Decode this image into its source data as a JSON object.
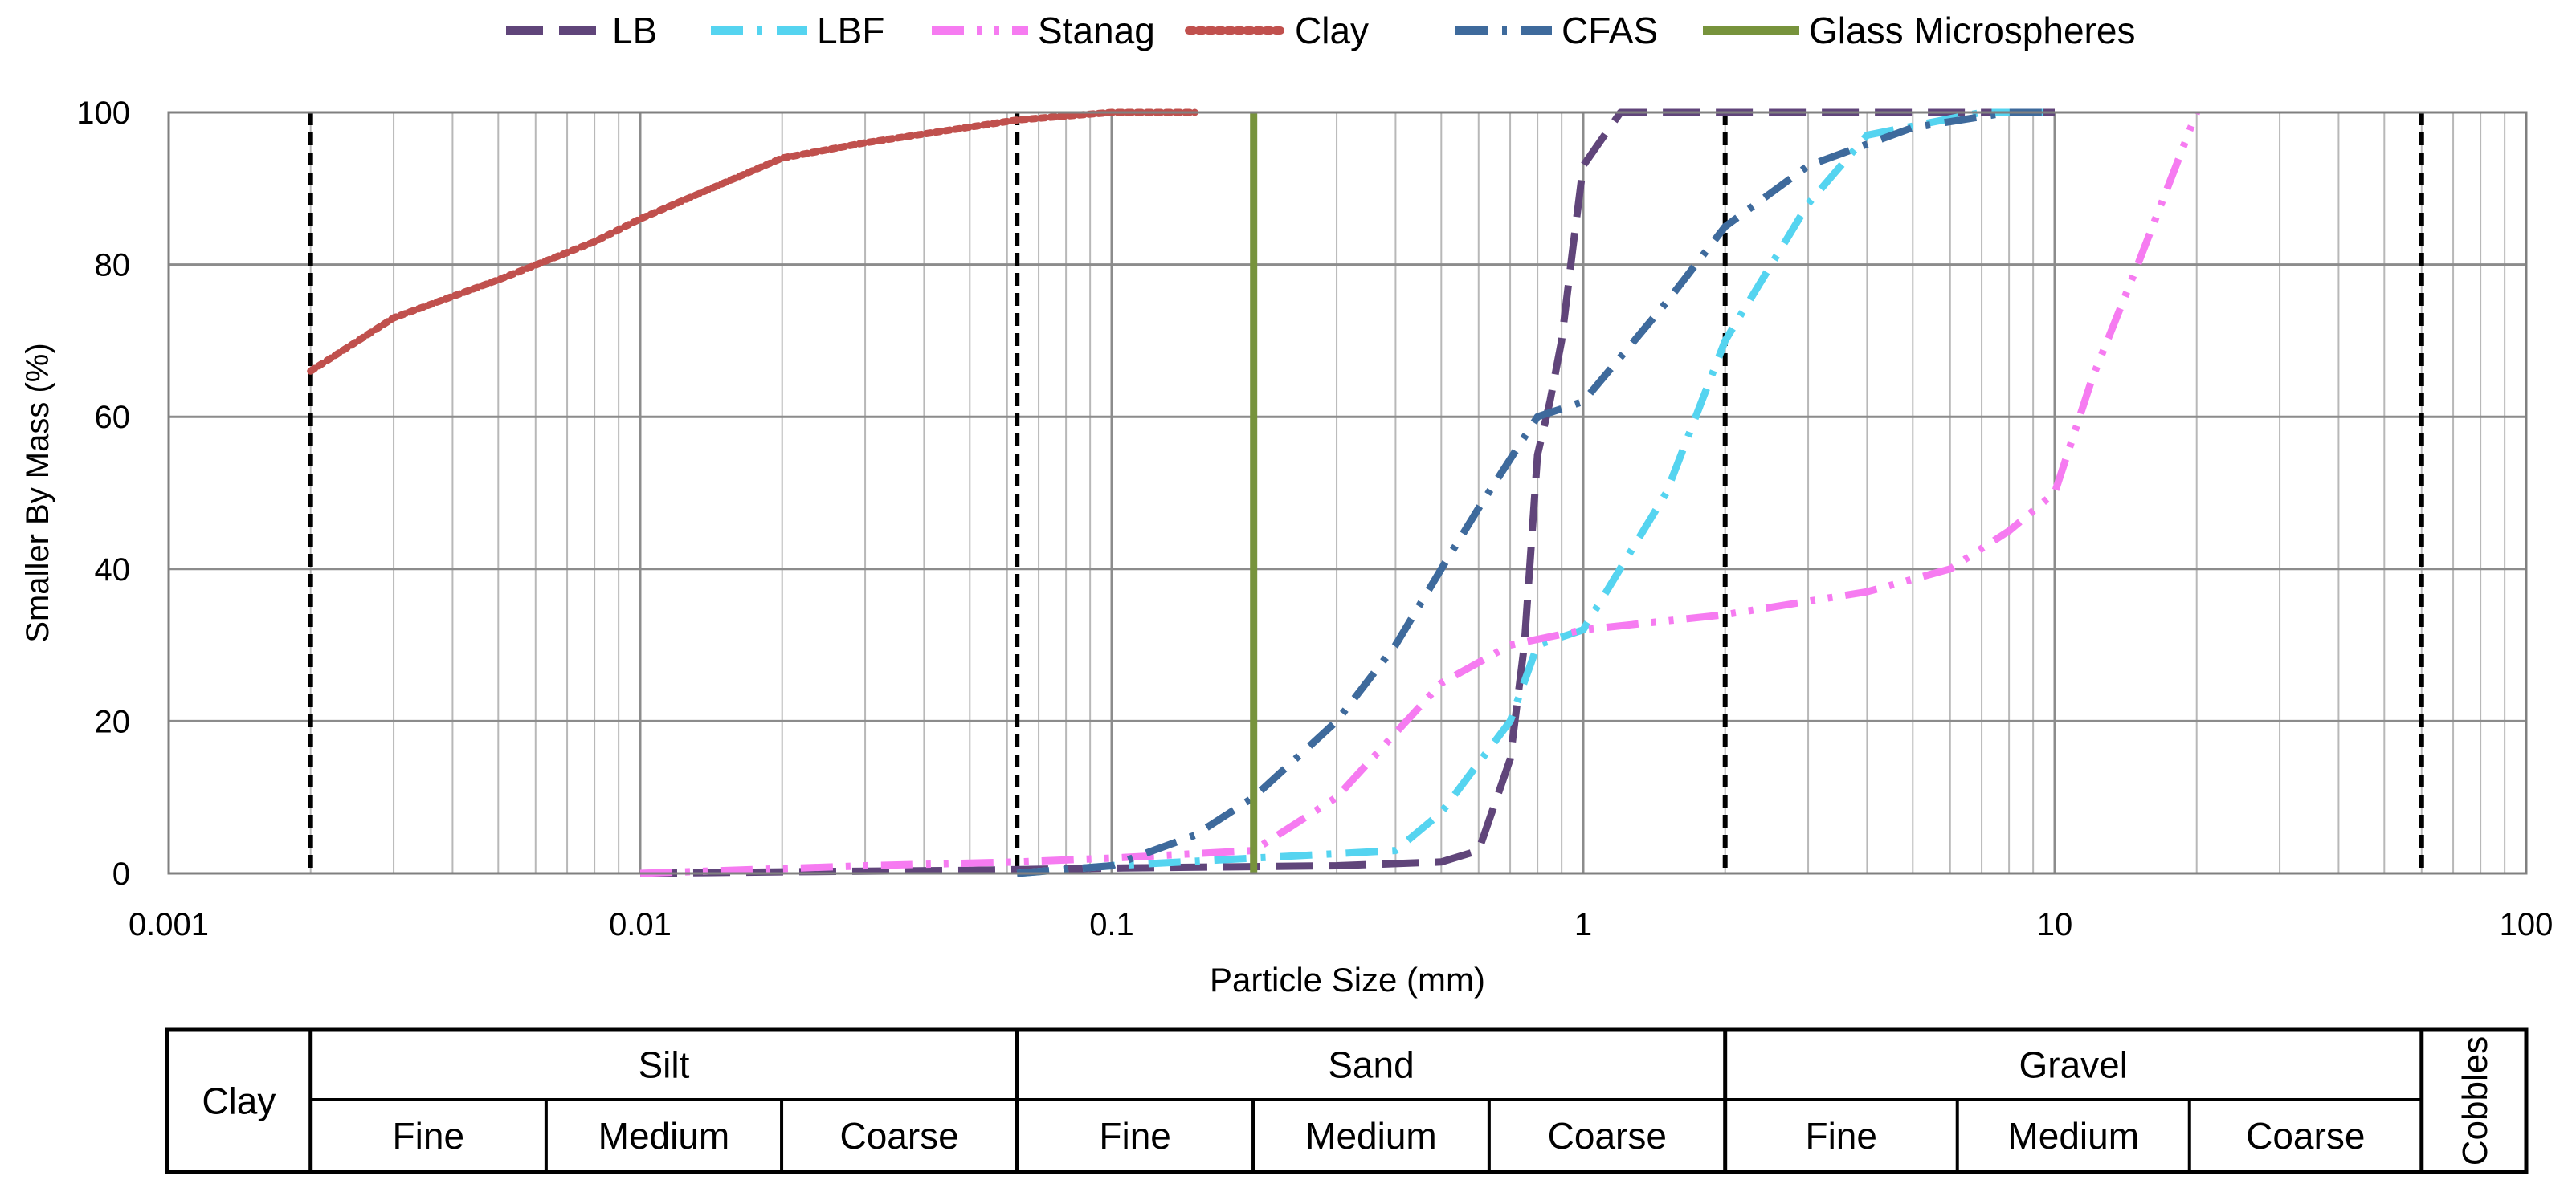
{
  "chart_data": {
    "type": "line",
    "xscale": "log",
    "xlim": [
      0.001,
      100
    ],
    "ylim": [
      0,
      100
    ],
    "xlabel": "Particle Size (mm)",
    "ylabel": "Smaller By Mass (%)",
    "x_ticks": [
      "0.001",
      "0.01",
      "0.1",
      "1",
      "10",
      "100"
    ],
    "y_ticks": [
      "0",
      "20",
      "40",
      "60",
      "80",
      "100"
    ],
    "grid": true,
    "legend_position": "top",
    "boundaries": [
      0.002,
      0.063,
      2,
      60
    ],
    "series": [
      {
        "name": "LB",
        "color": "#60457A",
        "style": "dash",
        "points": [
          [
            0.01,
            0
          ],
          [
            0.02,
            0.2
          ],
          [
            0.05,
            0.4
          ],
          [
            0.1,
            0.7
          ],
          [
            0.3,
            1
          ],
          [
            0.5,
            1.5
          ],
          [
            0.6,
            3
          ],
          [
            0.7,
            15
          ],
          [
            0.75,
            30
          ],
          [
            0.8,
            55
          ],
          [
            0.85,
            62
          ],
          [
            0.9,
            70
          ],
          [
            0.95,
            82
          ],
          [
            1,
            93
          ],
          [
            1.2,
            100
          ],
          [
            10,
            100
          ]
        ]
      },
      {
        "name": "LBF",
        "color": "#55D4F0",
        "style": "dashdot",
        "points": [
          [
            0.063,
            0
          ],
          [
            0.1,
            1
          ],
          [
            0.2,
            2
          ],
          [
            0.4,
            3
          ],
          [
            0.5,
            8
          ],
          [
            0.7,
            20
          ],
          [
            0.8,
            30
          ],
          [
            1,
            32
          ],
          [
            1.5,
            50
          ],
          [
            2,
            70
          ],
          [
            3,
            88
          ],
          [
            4,
            97
          ],
          [
            7,
            100
          ],
          [
            10,
            100
          ]
        ]
      },
      {
        "name": "Stanag",
        "color": "#F67BF1",
        "style": "dashdotdot",
        "points": [
          [
            0.01,
            0
          ],
          [
            0.03,
            1
          ],
          [
            0.063,
            1.5
          ],
          [
            0.1,
            2
          ],
          [
            0.2,
            3
          ],
          [
            0.3,
            10
          ],
          [
            0.5,
            25
          ],
          [
            0.7,
            30
          ],
          [
            1,
            32
          ],
          [
            2,
            34
          ],
          [
            4,
            37
          ],
          [
            6,
            40
          ],
          [
            8,
            45
          ],
          [
            10,
            50
          ],
          [
            12,
            65
          ],
          [
            15,
            80
          ],
          [
            20,
            100
          ]
        ]
      },
      {
        "name": "Clay",
        "color": "#C0504D",
        "style": "dot",
        "points": [
          [
            0.002,
            66
          ],
          [
            0.003,
            73
          ],
          [
            0.005,
            78
          ],
          [
            0.008,
            83
          ],
          [
            0.01,
            86
          ],
          [
            0.02,
            94
          ],
          [
            0.03,
            96
          ],
          [
            0.063,
            99
          ],
          [
            0.1,
            100
          ],
          [
            0.15,
            100
          ]
        ]
      },
      {
        "name": "CFAS",
        "color": "#3E6A9C",
        "style": "dashdot",
        "points": [
          [
            0.063,
            0
          ],
          [
            0.1,
            1
          ],
          [
            0.15,
            5
          ],
          [
            0.2,
            10
          ],
          [
            0.3,
            20
          ],
          [
            0.4,
            30
          ],
          [
            0.5,
            40
          ],
          [
            0.6,
            48
          ],
          [
            0.8,
            60
          ],
          [
            1,
            62
          ],
          [
            1.5,
            75
          ],
          [
            2,
            85
          ],
          [
            3,
            93
          ],
          [
            5,
            98
          ],
          [
            8,
            100
          ],
          [
            10,
            100
          ]
        ]
      },
      {
        "name": "Glass Microspheres",
        "color": "#77933C",
        "style": "solid",
        "points": [
          [
            0.2,
            0
          ],
          [
            0.2,
            100
          ]
        ]
      }
    ],
    "classification": {
      "clay": "Clay",
      "silt": "Silt",
      "sand": "Sand",
      "gravel": "Gravel",
      "cobbles": "Cobbles",
      "fine": "Fine",
      "medium": "Medium",
      "coarse": "Coarse"
    }
  }
}
